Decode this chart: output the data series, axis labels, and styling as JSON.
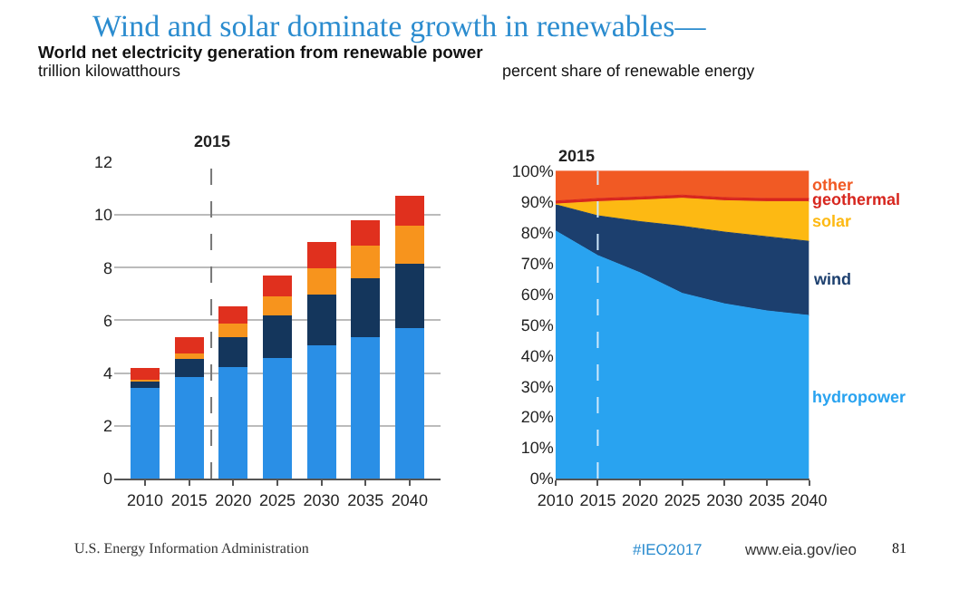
{
  "chart_data": [
    {
      "type": "bar",
      "title": "World net electricity generation from renewable power",
      "ylabel": "trillion kilowatthours",
      "annotations": [
        "Wind and solar dominate growth in renewables—",
        "U.S. Energy Information Administration",
        "#IEO2017",
        "www.eia.gov/ieo",
        "81",
        {
          "text": "2015",
          "x": 2017.5,
          "y": 12
        }
      ],
      "x": [
        2010,
        2015,
        2020,
        2025,
        2030,
        2035,
        2040
      ],
      "xlim": [
        2006.5,
        2043.5
      ],
      "xticks": [
        2010,
        2015,
        2020,
        2025,
        2030,
        2035,
        2040
      ],
      "ylim": [
        0,
        12
      ],
      "yticks": [
        0,
        2,
        4,
        6,
        8,
        10,
        12
      ],
      "grid": "y",
      "stacked": true,
      "ref_lines": [
        {
          "axis": "x",
          "value": 2017.5,
          "color": "#777777",
          "line_style": "dashed"
        }
      ],
      "series": [
        {
          "color": "#2a8fe6",
          "values": [
            3.45,
            3.86,
            4.24,
            4.58,
            5.07,
            5.36,
            5.69
          ]
        },
        {
          "color": "#14365c",
          "values": [
            0.25,
            0.67,
            1.12,
            1.6,
            1.92,
            2.23,
            2.46
          ]
        },
        {
          "color": "#f7941d",
          "values": [
            0.05,
            0.22,
            0.51,
            0.74,
            0.98,
            1.23,
            1.45
          ]
        },
        {
          "color": "#e0301e",
          "values": [
            0.45,
            0.6,
            0.65,
            0.78,
            1.0,
            0.96,
            1.11
          ]
        }
      ]
    },
    {
      "type": "area",
      "title": "percent share of renewable energy",
      "stacked": true,
      "x": [
        2010,
        2015,
        2020,
        2025,
        2030,
        2035,
        2040
      ],
      "xlim": [
        2010,
        2040
      ],
      "xticks": [
        2010,
        2015,
        2020,
        2025,
        2030,
        2035,
        2040
      ],
      "ylim": [
        0,
        100
      ],
      "yticks": [
        {
          "value": 0,
          "label": "0%"
        },
        {
          "value": 10,
          "label": "10%"
        },
        {
          "value": 20,
          "label": "20%"
        },
        {
          "value": 30,
          "label": "30%"
        },
        {
          "value": 40,
          "label": "40%"
        },
        {
          "value": 50,
          "label": "50%"
        },
        {
          "value": 60,
          "label": "60%"
        },
        {
          "value": 70,
          "label": "70%"
        },
        {
          "value": 80,
          "label": "80%"
        },
        {
          "value": 90,
          "label": "90%"
        },
        {
          "value": 100,
          "label": "100%"
        }
      ],
      "ref_lines": [
        {
          "axis": "x",
          "value": 2015,
          "label": "2015",
          "color": "#cfe8fb",
          "line_style": "dashed"
        }
      ],
      "series": [
        {
          "name": "hydropower",
          "color": "#29a3f0",
          "values": [
            80.5,
            72.5,
            66.9,
            60.2,
            56.8,
            54.5,
            53.0
          ]
        },
        {
          "name": "wind",
          "color": "#1c3f6e",
          "values": [
            8.5,
            12.9,
            16.6,
            21.8,
            23.3,
            24.1,
            24.1
          ]
        },
        {
          "name": "solar",
          "color": "#fdb913",
          "values": [
            0.2,
            4.6,
            7.0,
            9.1,
            10.2,
            11.4,
            12.9
          ]
        },
        {
          "name": "geothermal",
          "color": "#d7261e",
          "values": [
            1,
            1,
            1,
            1,
            1,
            1,
            1
          ]
        },
        {
          "name": "other",
          "color": "#f15a24",
          "values": [
            9.8,
            9.0,
            8.5,
            7.9,
            8.7,
            9.0,
            9.0
          ]
        }
      ]
    }
  ]
}
